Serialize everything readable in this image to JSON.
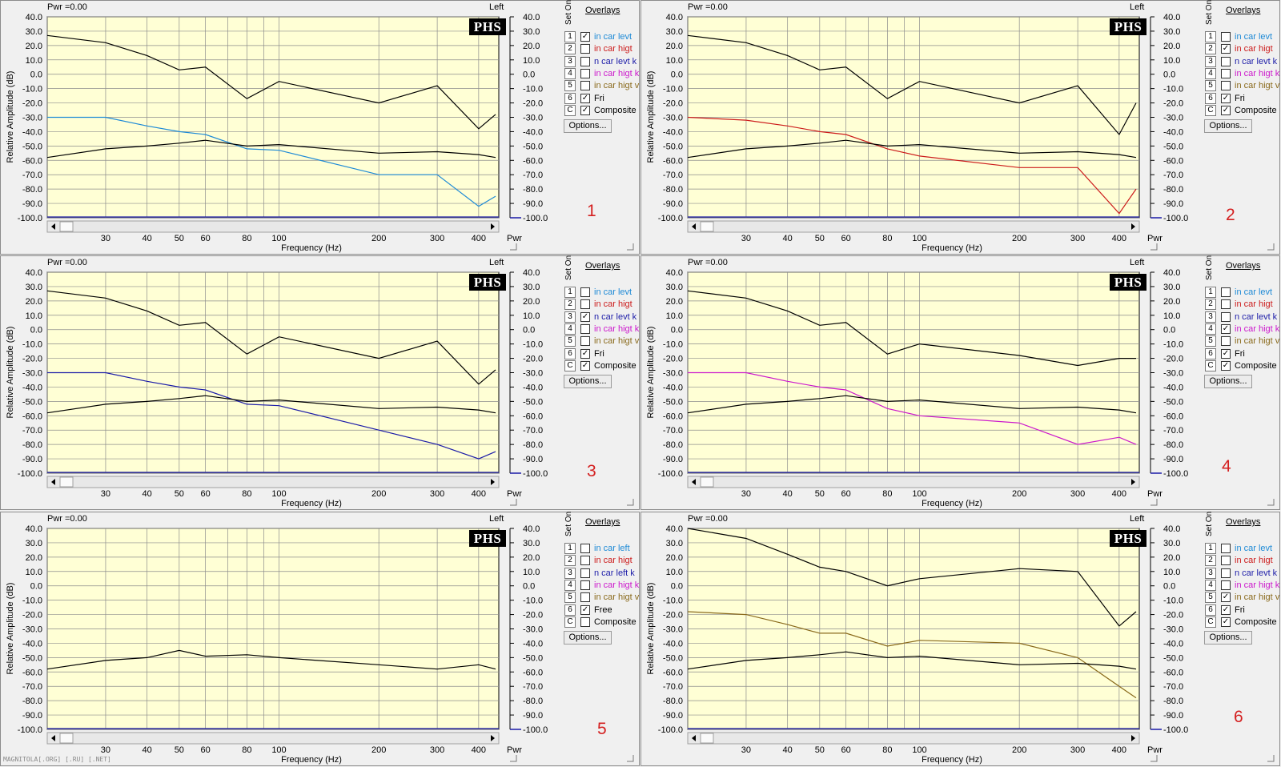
{
  "common": {
    "pwr_label": "Pwr =0.00",
    "channel_label": "Left",
    "logo_text": "PHS",
    "overlays_title": "Overlays",
    "set_on_label": "Set On",
    "options_label": "Options...",
    "y_axis_label": "Relative Amplitude (dB)",
    "x_axis_label": "Frequency (Hz)",
    "right_axis_label": "Pwr",
    "y_ticks": [
      "40.0",
      "30.0",
      "20.0",
      "10.0",
      "0.0",
      "-10.0",
      "-20.0",
      "-30.0",
      "-40.0",
      "-50.0",
      "-60.0",
      "-70.0",
      "-80.0",
      "-90.0",
      "-100.0"
    ],
    "x_ticks": [
      "30",
      "40",
      "50",
      "60",
      "80",
      "100",
      "200",
      "300",
      "400"
    ],
    "colors": {
      "plot_bg": "#ffffd5",
      "grid": "#8c8c8c",
      "reference": "#000000",
      "pwr_line": "#1a1aa8"
    }
  },
  "watermark": "MAGNITOLA[.ORG] [.RU] [.NET]",
  "panels": [
    {
      "number": "1",
      "overlays": [
        {
          "num": "1",
          "label": "in car levt",
          "color": "#1e8ad6",
          "checked": true
        },
        {
          "num": "2",
          "label": "in car higt",
          "color": "#cc1c1c",
          "checked": false
        },
        {
          "num": "3",
          "label": "n car levt k",
          "color": "#1c1ca8",
          "checked": false
        },
        {
          "num": "4",
          "label": "in car higt k",
          "color": "#cc18cc",
          "checked": false
        },
        {
          "num": "5",
          "label": "in car higt v",
          "color": "#8a6a1c",
          "checked": false
        },
        {
          "num": "6",
          "label": "Fri",
          "color": "#000000",
          "checked": true
        },
        {
          "num": "C",
          "label": "Composite",
          "color": "#000000",
          "checked": true
        }
      ]
    },
    {
      "number": "2",
      "overlays": [
        {
          "num": "1",
          "label": "in car levt",
          "color": "#1e8ad6",
          "checked": false
        },
        {
          "num": "2",
          "label": "in car higt",
          "color": "#cc1c1c",
          "checked": true
        },
        {
          "num": "3",
          "label": "n car levt k",
          "color": "#1c1ca8",
          "checked": false
        },
        {
          "num": "4",
          "label": "in car higt k",
          "color": "#cc18cc",
          "checked": false
        },
        {
          "num": "5",
          "label": "in car higt v",
          "color": "#8a6a1c",
          "checked": false
        },
        {
          "num": "6",
          "label": "Fri",
          "color": "#000000",
          "checked": true
        },
        {
          "num": "C",
          "label": "Composite",
          "color": "#000000",
          "checked": true
        }
      ]
    },
    {
      "number": "3",
      "overlays": [
        {
          "num": "1",
          "label": "in car levt",
          "color": "#1e8ad6",
          "checked": false
        },
        {
          "num": "2",
          "label": "in car higt",
          "color": "#cc1c1c",
          "checked": false
        },
        {
          "num": "3",
          "label": "n car levt k",
          "color": "#1c1ca8",
          "checked": true
        },
        {
          "num": "4",
          "label": "in car higt k",
          "color": "#cc18cc",
          "checked": false
        },
        {
          "num": "5",
          "label": "in car higt v",
          "color": "#8a6a1c",
          "checked": false
        },
        {
          "num": "6",
          "label": "Fri",
          "color": "#000000",
          "checked": true
        },
        {
          "num": "C",
          "label": "Composite",
          "color": "#000000",
          "checked": true
        }
      ]
    },
    {
      "number": "4",
      "overlays": [
        {
          "num": "1",
          "label": "in car levt",
          "color": "#1e8ad6",
          "checked": false
        },
        {
          "num": "2",
          "label": "in car higt",
          "color": "#cc1c1c",
          "checked": false
        },
        {
          "num": "3",
          "label": "n car levt k",
          "color": "#1c1ca8",
          "checked": false
        },
        {
          "num": "4",
          "label": "in car higt k",
          "color": "#cc18cc",
          "checked": true
        },
        {
          "num": "5",
          "label": "in car higt v",
          "color": "#8a6a1c",
          "checked": false
        },
        {
          "num": "6",
          "label": "Fri",
          "color": "#000000",
          "checked": true
        },
        {
          "num": "C",
          "label": "Composite",
          "color": "#000000",
          "checked": true
        }
      ]
    },
    {
      "number": "5",
      "overlays": [
        {
          "num": "1",
          "label": "in car left",
          "color": "#1e8ad6",
          "checked": false
        },
        {
          "num": "2",
          "label": "in car higt",
          "color": "#cc1c1c",
          "checked": false
        },
        {
          "num": "3",
          "label": "n car left k",
          "color": "#1c1ca8",
          "checked": false
        },
        {
          "num": "4",
          "label": "in car higt k",
          "color": "#cc18cc",
          "checked": false
        },
        {
          "num": "5",
          "label": "in car higt v",
          "color": "#8a6a1c",
          "checked": false
        },
        {
          "num": "6",
          "label": "Free",
          "color": "#000000",
          "checked": true
        },
        {
          "num": "C",
          "label": "Composite",
          "color": "#000000",
          "checked": false
        }
      ]
    },
    {
      "number": "6",
      "overlays": [
        {
          "num": "1",
          "label": "in car levt",
          "color": "#1e8ad6",
          "checked": false
        },
        {
          "num": "2",
          "label": "in car higt",
          "color": "#cc1c1c",
          "checked": false
        },
        {
          "num": "3",
          "label": "n car levt k",
          "color": "#1c1ca8",
          "checked": false
        },
        {
          "num": "4",
          "label": "in car higt k",
          "color": "#cc18cc",
          "checked": false
        },
        {
          "num": "5",
          "label": "in car higt v",
          "color": "#8a6a1c",
          "checked": true
        },
        {
          "num": "6",
          "label": "Fri",
          "color": "#000000",
          "checked": true
        },
        {
          "num": "C",
          "label": "Composite",
          "color": "#000000",
          "checked": true
        }
      ]
    }
  ],
  "chart_data": [
    {
      "type": "line",
      "panel": "1",
      "x": [
        20,
        30,
        40,
        50,
        60,
        80,
        100,
        200,
        300,
        400,
        450
      ],
      "xscale": "log",
      "ylim": [
        -100,
        40
      ],
      "series": [
        {
          "name": "Composite",
          "color": "#000000",
          "values": [
            27,
            22,
            13,
            3,
            5,
            -17,
            -5,
            -20,
            -8,
            -38,
            -28
          ]
        },
        {
          "name": "in car levt",
          "color": "#1e8ad6",
          "values": [
            -30,
            -30,
            -36,
            -40,
            -42,
            -52,
            -53,
            -70,
            -70,
            -92,
            -85
          ]
        },
        {
          "name": "Fri",
          "color": "#000000",
          "values": [
            -58,
            -52,
            -50,
            -48,
            -46,
            -50,
            -49,
            -55,
            -54,
            -56,
            -58
          ]
        }
      ]
    },
    {
      "type": "line",
      "panel": "2",
      "x": [
        20,
        30,
        40,
        50,
        60,
        80,
        100,
        200,
        300,
        400,
        450
      ],
      "xscale": "log",
      "ylim": [
        -100,
        40
      ],
      "series": [
        {
          "name": "Composite",
          "color": "#000000",
          "values": [
            27,
            22,
            13,
            3,
            5,
            -17,
            -5,
            -20,
            -8,
            -42,
            -20
          ]
        },
        {
          "name": "in car higt",
          "color": "#cc1c1c",
          "values": [
            -30,
            -32,
            -36,
            -40,
            -42,
            -52,
            -57,
            -65,
            -65,
            -97,
            -80
          ]
        },
        {
          "name": "Fri",
          "color": "#000000",
          "values": [
            -58,
            -52,
            -50,
            -48,
            -46,
            -50,
            -49,
            -55,
            -54,
            -56,
            -58
          ]
        }
      ]
    },
    {
      "type": "line",
      "panel": "3",
      "x": [
        20,
        30,
        40,
        50,
        60,
        80,
        100,
        200,
        300,
        400,
        450
      ],
      "xscale": "log",
      "ylim": [
        -100,
        40
      ],
      "series": [
        {
          "name": "Composite",
          "color": "#000000",
          "values": [
            27,
            22,
            13,
            3,
            5,
            -17,
            -5,
            -20,
            -8,
            -38,
            -28
          ]
        },
        {
          "name": "n car levt k",
          "color": "#1c1ca8",
          "values": [
            -30,
            -30,
            -36,
            -40,
            -42,
            -52,
            -53,
            -70,
            -80,
            -90,
            -85
          ]
        },
        {
          "name": "Fri",
          "color": "#000000",
          "values": [
            -58,
            -52,
            -50,
            -48,
            -46,
            -50,
            -49,
            -55,
            -54,
            -56,
            -58
          ]
        }
      ]
    },
    {
      "type": "line",
      "panel": "4",
      "x": [
        20,
        30,
        40,
        50,
        60,
        80,
        100,
        200,
        300,
        400,
        450
      ],
      "xscale": "log",
      "ylim": [
        -100,
        40
      ],
      "series": [
        {
          "name": "Composite",
          "color": "#000000",
          "values": [
            27,
            22,
            13,
            3,
            5,
            -17,
            -10,
            -18,
            -25,
            -20,
            -20
          ]
        },
        {
          "name": "in car higt k",
          "color": "#cc18cc",
          "values": [
            -30,
            -30,
            -36,
            -40,
            -42,
            -55,
            -60,
            -65,
            -80,
            -75,
            -80
          ]
        },
        {
          "name": "Fri",
          "color": "#000000",
          "values": [
            -58,
            -52,
            -50,
            -48,
            -46,
            -50,
            -49,
            -55,
            -54,
            -56,
            -58
          ]
        }
      ]
    },
    {
      "type": "line",
      "panel": "5",
      "x": [
        20,
        30,
        40,
        50,
        60,
        80,
        100,
        200,
        300,
        400,
        450
      ],
      "xscale": "log",
      "ylim": [
        -100,
        40
      ],
      "series": [
        {
          "name": "Free",
          "color": "#000000",
          "values": [
            -58,
            -52,
            -50,
            -45,
            -49,
            -48,
            -50,
            -55,
            -58,
            -55,
            -58
          ]
        }
      ]
    },
    {
      "type": "line",
      "panel": "6",
      "x": [
        20,
        30,
        40,
        50,
        60,
        80,
        100,
        200,
        300,
        400,
        450
      ],
      "xscale": "log",
      "ylim": [
        -100,
        40
      ],
      "series": [
        {
          "name": "Composite",
          "color": "#000000",
          "values": [
            40,
            33,
            22,
            13,
            10,
            0,
            5,
            12,
            10,
            -28,
            -18
          ]
        },
        {
          "name": "in car higt v",
          "color": "#8a6a1c",
          "values": [
            -18,
            -20,
            -27,
            -33,
            -33,
            -42,
            -38,
            -40,
            -50,
            -70,
            -78
          ]
        },
        {
          "name": "Fri",
          "color": "#000000",
          "values": [
            -58,
            -52,
            -50,
            -48,
            -46,
            -50,
            -49,
            -55,
            -54,
            -56,
            -58
          ]
        }
      ]
    }
  ]
}
